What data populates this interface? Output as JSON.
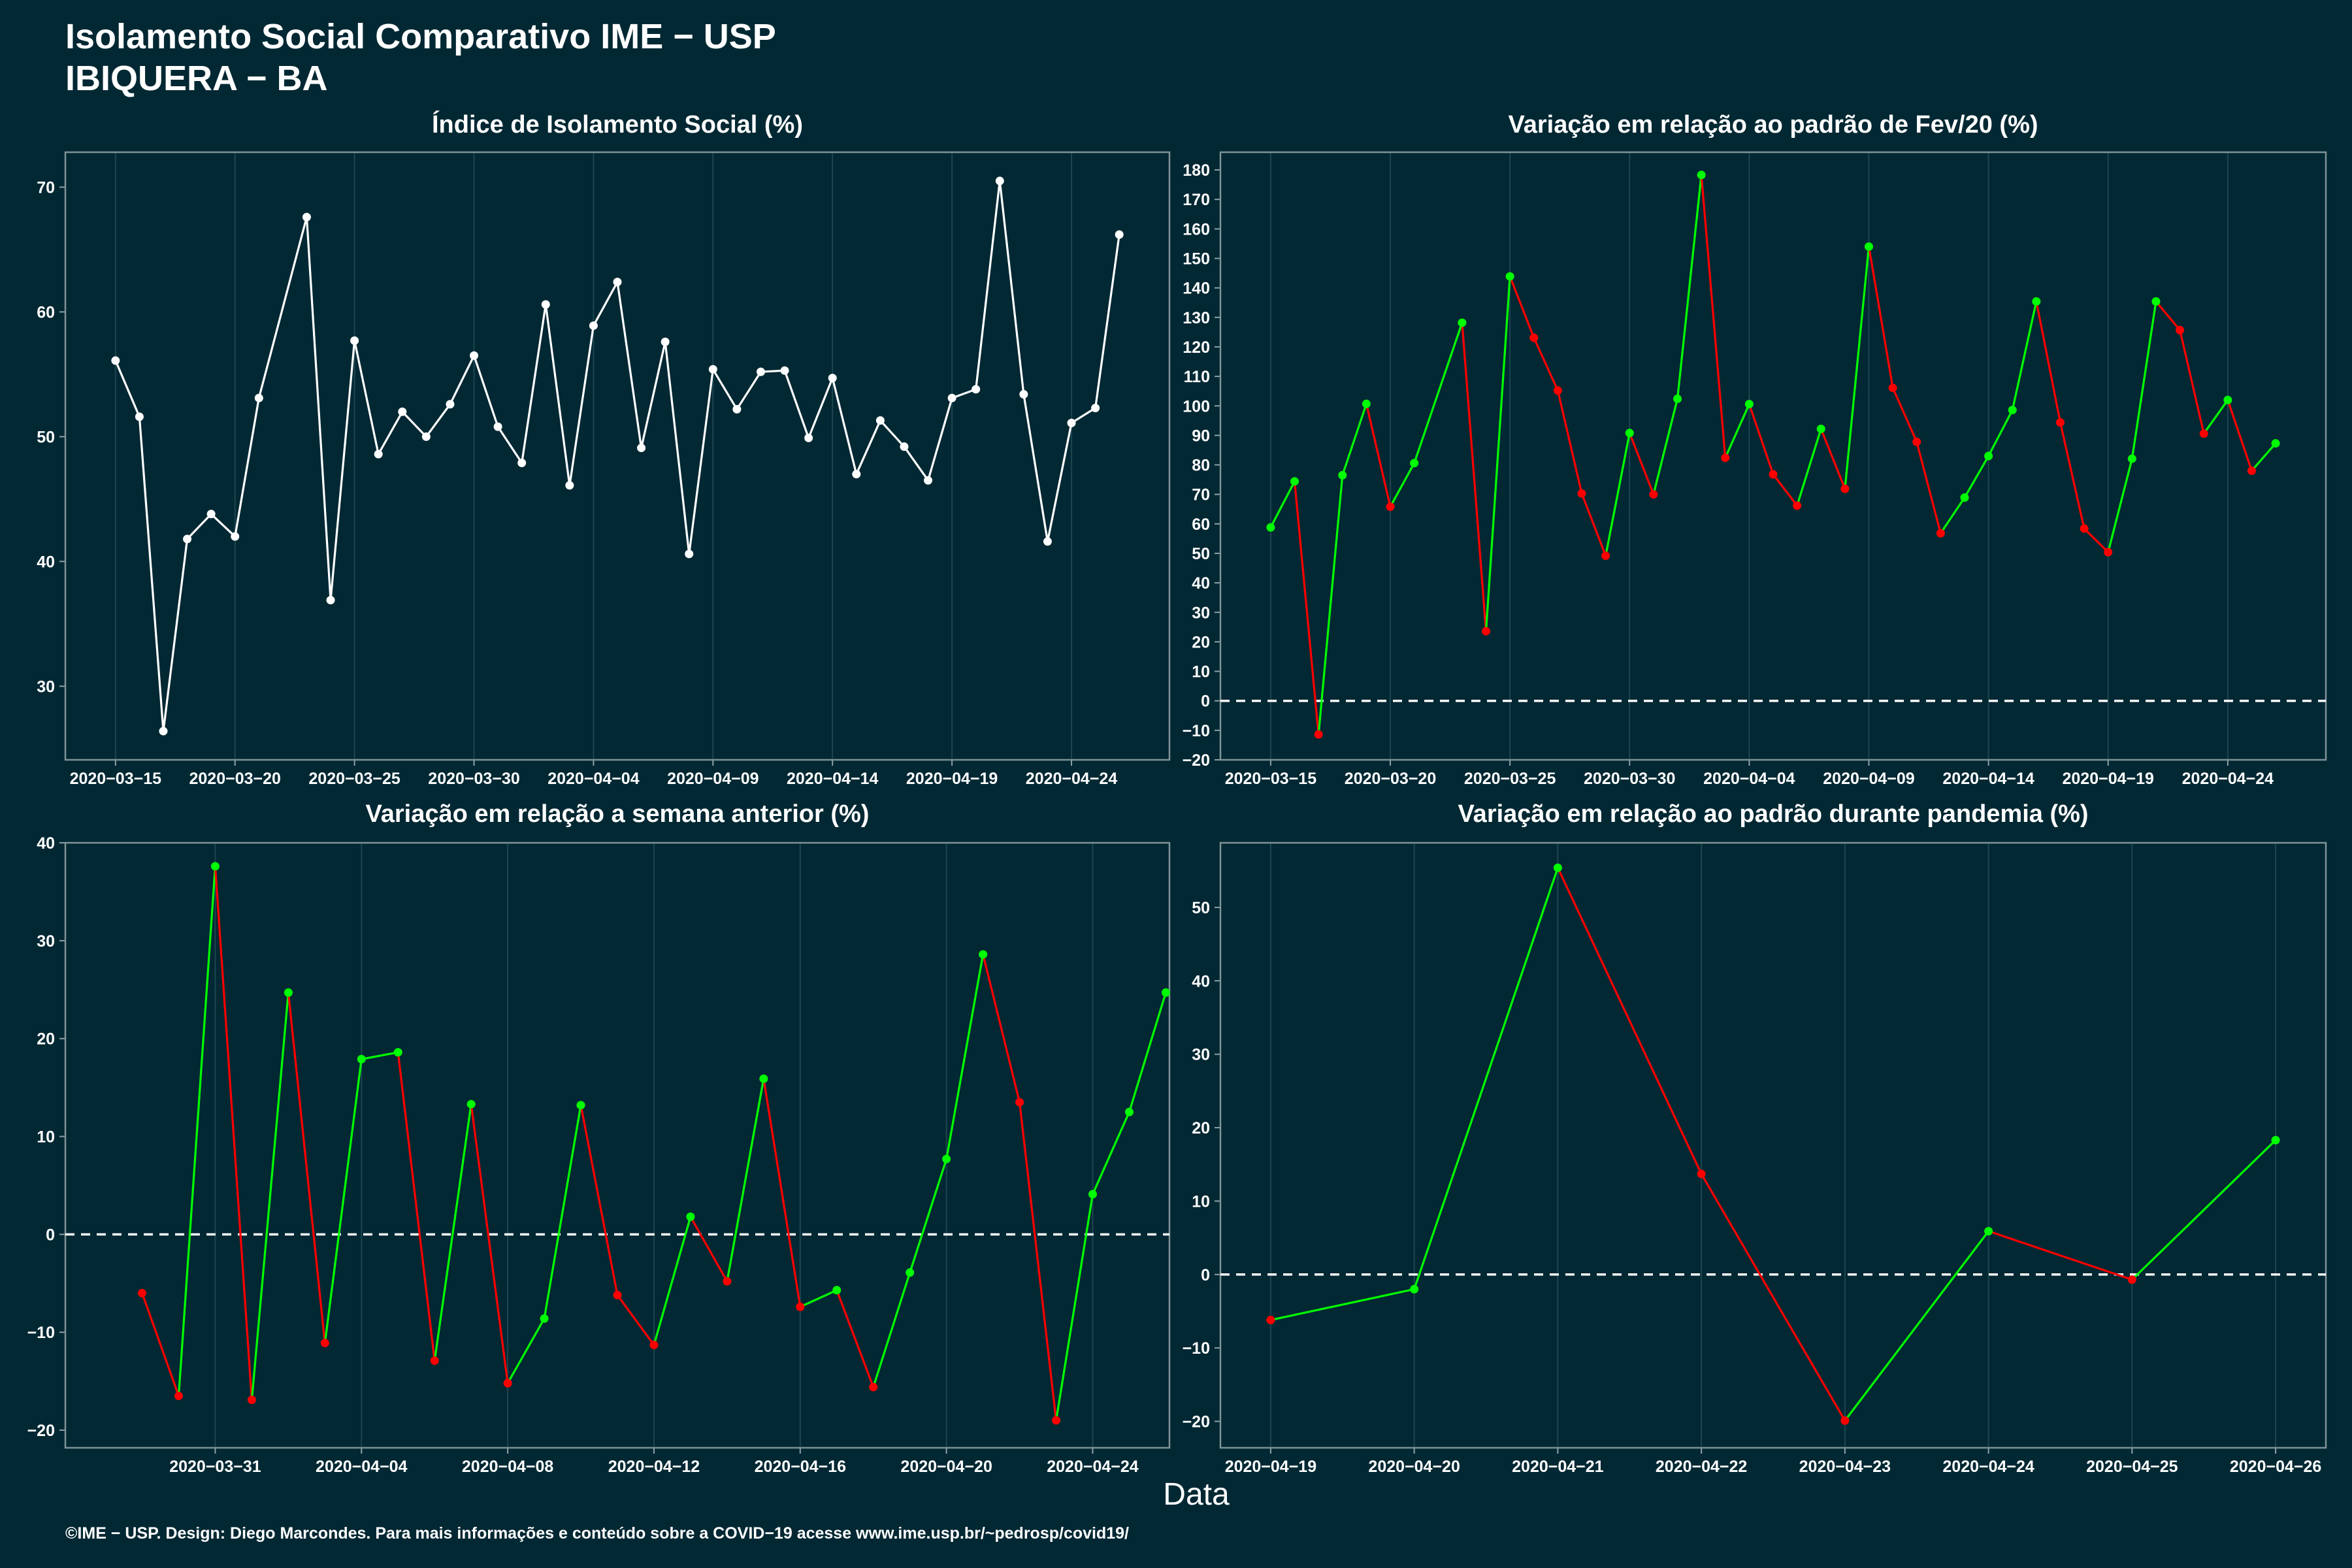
{
  "header": {
    "title": "Isolamento Social Comparativo IME − USP",
    "subtitle": "IBIQUERA − BA"
  },
  "x_axis_label": "Data",
  "footer": "©IME − USP. Design: Diego Marcondes. Para mais informações e conteúdo sobre a COVID−19 acesse www.ime.usp.br/~pedrosp/covid19/",
  "colors": {
    "background": "#022833",
    "white": "#ffffff",
    "green": "#00ff00",
    "red": "#ff0000",
    "grid": "#1c4650"
  },
  "chart_data": [
    {
      "type": "line",
      "title": "Índice de Isolamento Social (%)",
      "x_start": "2020-03-15",
      "x_ticks": [
        "2020−03−15",
        "2020−03−20",
        "2020−03−25",
        "2020−03−30",
        "2020−04−04",
        "2020−04−09",
        "2020−04−14",
        "2020−04−19",
        "2020−04−24"
      ],
      "y_ticks": [
        30,
        40,
        50,
        60,
        70
      ],
      "ylim": [
        24.1,
        72.8
      ],
      "xlim_days": [
        -2.1,
        44.1
      ],
      "reference_line": null,
      "colored": false,
      "x_days": [
        0,
        1,
        2,
        3,
        4,
        5,
        6,
        8,
        9,
        10,
        11,
        12,
        13,
        14,
        15,
        16,
        17,
        18,
        19,
        20,
        21,
        22,
        23,
        24,
        25,
        26,
        27,
        28,
        29,
        30,
        31,
        32,
        33,
        34,
        35,
        36,
        37,
        38,
        39,
        40,
        41,
        42
      ],
      "values": [
        56.1,
        51.6,
        26.4,
        41.8,
        43.8,
        42.0,
        53.1,
        67.6,
        36.9,
        57.7,
        48.6,
        52.0,
        50.0,
        52.6,
        56.5,
        50.8,
        47.9,
        60.6,
        46.1,
        58.9,
        62.4,
        49.1,
        57.6,
        40.6,
        55.4,
        52.2,
        55.2,
        55.3,
        49.9,
        54.7,
        47.0,
        51.3,
        49.2,
        46.5,
        53.1,
        53.8,
        70.5,
        53.4,
        41.6,
        51.1,
        52.3,
        66.2
      ]
    },
    {
      "type": "line",
      "title": "Variação em relação ao padrão de Fev/20 (%)",
      "x_start": "2020-03-15",
      "x_ticks": [
        "2020−03−15",
        "2020−03−20",
        "2020−03−25",
        "2020−03−30",
        "2020−04−04",
        "2020−04−09",
        "2020−04−14",
        "2020−04−19",
        "2020−04−24"
      ],
      "y_ticks": [
        -20,
        -10,
        0,
        10,
        20,
        30,
        40,
        50,
        60,
        70,
        80,
        90,
        100,
        110,
        120,
        130,
        140,
        150,
        160,
        170,
        180
      ],
      "ylim": [
        -20,
        186
      ],
      "xlim_days": [
        -2.1,
        44.1
      ],
      "reference_line": 0,
      "colored": true,
      "x_days": [
        0,
        1,
        2,
        3,
        4,
        5,
        6,
        8,
        9,
        10,
        11,
        12,
        13,
        14,
        15,
        16,
        17,
        18,
        19,
        20,
        21,
        22,
        23,
        24,
        25,
        26,
        27,
        28,
        29,
        30,
        31,
        32,
        33,
        34,
        35,
        36,
        37,
        38,
        39,
        40,
        41,
        42
      ],
      "values": [
        58.8,
        74.4,
        -11.4,
        76.5,
        100.7,
        65.8,
        80.6,
        128.2,
        23.6,
        143.9,
        123.1,
        105.2,
        70.3,
        49.2,
        90.8,
        70.0,
        102.4,
        178.3,
        82.4,
        100.6,
        76.8,
        66.2,
        92.2,
        71.9,
        154.0,
        106.1,
        87.8,
        56.8,
        68.9,
        83.0,
        98.6,
        135.4,
        94.4,
        58.4,
        50.4,
        82.1,
        135.4,
        125.7,
        90.6,
        102.0,
        78.0,
        87.3
      ]
    },
    {
      "type": "line",
      "title": "Variação em relação a semana anterior (%)",
      "x_start": "2020-03-29",
      "x_ticks": [
        "2020−03−31",
        "2020−04−04",
        "2020−04−08",
        "2020−04−12",
        "2020−04−16",
        "2020−04−20",
        "2020−04−24"
      ],
      "y_ticks": [
        -20,
        -10,
        0,
        10,
        20,
        30,
        40
      ],
      "ylim": [
        -21.8,
        40
      ],
      "xlim_days": [
        -2.1,
        28.1
      ],
      "reference_line": 0,
      "colored": true,
      "x_days": [
        0,
        1,
        2,
        3,
        4,
        5,
        6,
        7,
        8,
        9,
        10,
        11,
        12,
        13,
        14,
        15,
        16,
        17,
        18,
        19,
        20,
        21,
        22,
        23,
        24,
        25,
        26,
        27,
        28
      ],
      "values": [
        -6.0,
        -16.5,
        37.6,
        -16.9,
        24.7,
        -11.1,
        17.9,
        18.6,
        -12.9,
        13.3,
        -15.2,
        -8.6,
        13.2,
        -6.2,
        -11.3,
        1.8,
        -4.8,
        15.9,
        -7.4,
        -5.7,
        -15.6,
        -3.9,
        7.7,
        28.6,
        13.5,
        -19.0,
        4.1,
        12.5,
        24.7
      ]
    },
    {
      "type": "line",
      "title": "Variação em relação ao padrão durante pandemia (%)",
      "x_start": "2020-04-19",
      "x_ticks": [
        "2020−04−19",
        "2020−04−20",
        "2020−04−21",
        "2020−04−22",
        "2020−04−23",
        "2020−04−24",
        "2020−04−25",
        "2020−04−26"
      ],
      "y_ticks": [
        -20,
        -10,
        0,
        10,
        20,
        30,
        40,
        50
      ],
      "ylim": [
        -23.6,
        58.8
      ],
      "xlim_days": [
        -0.35,
        7.35
      ],
      "reference_line": 0,
      "colored": true,
      "x_days": [
        0,
        1,
        2,
        3,
        4,
        5,
        6,
        7
      ],
      "values": [
        -6.2,
        -2.0,
        55.4,
        13.7,
        -19.9,
        5.9,
        -0.7,
        18.3
      ]
    }
  ]
}
